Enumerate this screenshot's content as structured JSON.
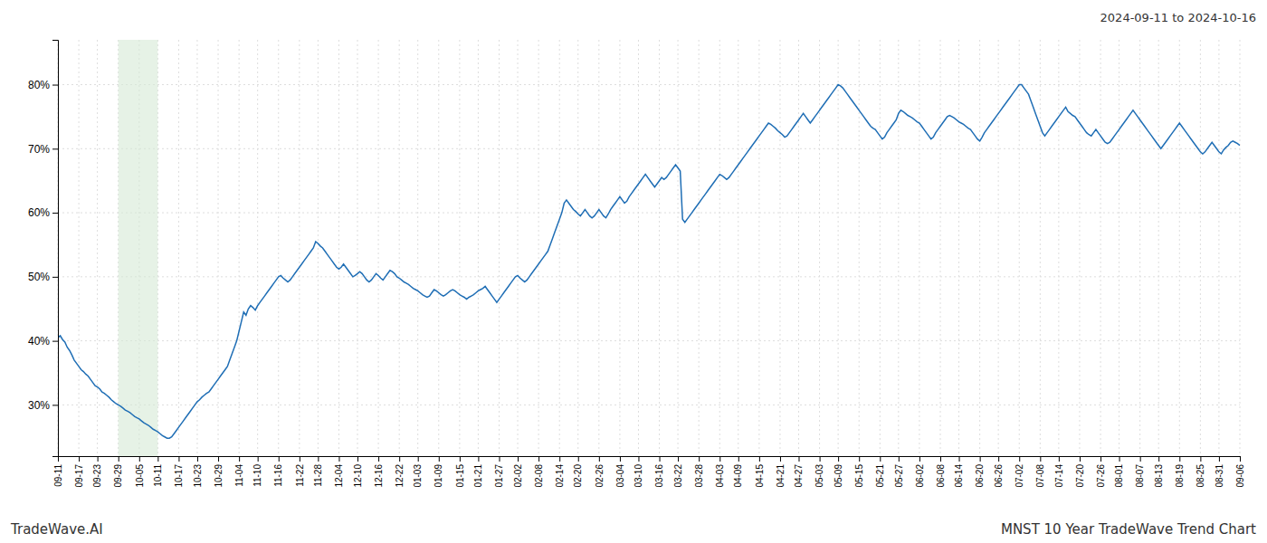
{
  "chart_data": {
    "type": "line",
    "title": "MNST 10 Year TradeWave Trend Chart",
    "subtitle": "2024-09-11 to 2024-10-16",
    "annotations": [
      "TradeWave.AI"
    ],
    "color": "#1f6eb5",
    "grid": true,
    "ylim": [
      22,
      87
    ],
    "yticks": [
      {
        "value": 30,
        "label": "30%"
      },
      {
        "value": 40,
        "label": "40%"
      },
      {
        "value": 50,
        "label": "50%"
      },
      {
        "value": 60,
        "label": "60%"
      },
      {
        "value": 70,
        "label": "70%"
      },
      {
        "value": 80,
        "label": "80%"
      }
    ],
    "shade": {
      "from": "09-29",
      "to": "10-11",
      "color": "#d6ead6"
    },
    "categories": [
      "09-11",
      null,
      null,
      null,
      null,
      null,
      null,
      null,
      null,
      "09-17",
      null,
      null,
      null,
      null,
      null,
      null,
      null,
      "09-23",
      null,
      null,
      null,
      null,
      null,
      null,
      null,
      null,
      "09-29",
      null,
      null,
      null,
      null,
      null,
      null,
      null,
      null,
      "10-05",
      null,
      null,
      null,
      null,
      null,
      null,
      null,
      "10-11",
      null,
      null,
      null,
      null,
      null,
      null,
      null,
      null,
      "10-17",
      null,
      null,
      null,
      null,
      null,
      null,
      null,
      "10-23",
      null,
      null,
      null,
      null,
      null,
      null,
      null,
      null,
      "10-29",
      null,
      null,
      null,
      null,
      null,
      null,
      null,
      null,
      "11-04",
      null,
      null,
      null,
      null,
      null,
      null,
      null,
      "11-10",
      null,
      null,
      null,
      null,
      null,
      null,
      null,
      null,
      "11-16",
      null,
      null,
      null,
      null,
      null,
      null,
      null,
      null,
      "11-22",
      null,
      null,
      null,
      null,
      null,
      null,
      null,
      "11-28",
      null,
      null,
      null,
      null,
      null,
      null,
      null,
      null,
      "12-04",
      null,
      null,
      null,
      null,
      null,
      null,
      null,
      "12-10",
      null,
      null,
      null,
      null,
      null,
      null,
      null,
      null,
      "12-16",
      null,
      null,
      null,
      null,
      null,
      null,
      null,
      null,
      "12-22",
      null,
      null,
      null,
      null,
      null,
      null,
      null,
      "01-03",
      null,
      null,
      null,
      null,
      null,
      null,
      null,
      null,
      "01-09",
      null,
      null,
      null,
      null,
      null,
      null,
      null,
      null,
      "01-15",
      null,
      null,
      null,
      null,
      null,
      null,
      null,
      "01-21",
      null,
      null,
      null,
      null,
      null,
      null,
      null,
      null,
      "01-27",
      null,
      null,
      null,
      null,
      null,
      null,
      null,
      "02-02",
      null,
      null,
      null,
      null,
      null,
      null,
      null,
      null,
      "02-08",
      null,
      null,
      null,
      null,
      null,
      null,
      null,
      null,
      "02-14",
      null,
      null,
      null,
      null,
      null,
      null,
      null,
      "02-20",
      null,
      null,
      null,
      null,
      null,
      null,
      null,
      null,
      "02-26",
      null,
      null,
      null,
      null,
      null,
      null,
      null,
      null,
      "03-04",
      null,
      null,
      null,
      null,
      null,
      null,
      null,
      "03-10",
      null,
      null,
      null,
      null,
      null,
      null,
      null,
      null,
      "03-16",
      null,
      null,
      null,
      null,
      null,
      null,
      null,
      "03-22",
      null,
      null,
      null,
      null,
      null,
      null,
      null,
      null,
      "03-28",
      null,
      null,
      null,
      null,
      null,
      null,
      null,
      null,
      "04-03",
      null,
      null,
      null,
      null,
      null,
      null,
      null,
      "04-09",
      null,
      null,
      null,
      null,
      null,
      null,
      null,
      null,
      "04-15",
      null,
      null,
      null,
      null,
      null,
      null,
      null,
      null,
      "04-21",
      null,
      null,
      null,
      null,
      null,
      null,
      null,
      "04-27",
      null,
      null,
      null,
      null,
      null,
      null,
      null,
      null,
      "05-03",
      null,
      null,
      null,
      null,
      null,
      null,
      null,
      "05-09",
      null,
      null,
      null,
      null,
      null,
      null,
      null,
      null,
      "05-15",
      null,
      null,
      null,
      null,
      null,
      null,
      null,
      null,
      "05-21",
      null,
      null,
      null,
      null,
      null,
      null,
      null,
      "05-27",
      null,
      null,
      null,
      null,
      null,
      null,
      null,
      null,
      "06-02",
      null,
      null,
      null,
      null,
      null,
      null,
      null,
      null,
      "06-08",
      null,
      null,
      null,
      null,
      null,
      null,
      null,
      "06-14",
      null,
      null,
      null,
      null,
      null,
      null,
      null,
      null,
      "06-20",
      null,
      null,
      null,
      null,
      null,
      null,
      null,
      "06-26",
      null,
      null,
      null,
      null,
      null,
      null,
      null,
      null,
      "07-02",
      null,
      null,
      null,
      null,
      null,
      null,
      null,
      null,
      "07-08",
      null,
      null,
      null,
      null,
      null,
      null,
      null,
      "07-14",
      null,
      null,
      null,
      null,
      null,
      null,
      null,
      null,
      "07-20",
      null,
      null,
      null,
      null,
      null,
      null,
      null,
      null,
      "07-26",
      null,
      null,
      null,
      null,
      null,
      null,
      null,
      "08-01",
      null,
      null,
      null,
      null,
      null,
      null,
      null,
      null,
      "08-07",
      null,
      null,
      null,
      null,
      null,
      null,
      null,
      "08-13",
      null,
      null,
      null,
      null,
      null,
      null,
      null,
      null,
      "08-19",
      null,
      null,
      null,
      null,
      null,
      null,
      null,
      null,
      "08-25",
      null,
      null,
      null,
      null,
      null,
      null,
      null,
      "08-31",
      null,
      null,
      null,
      null,
      null,
      null,
      null,
      null,
      "09-06"
    ],
    "values": [
      40.5,
      40.8,
      40.2,
      39.8,
      39.0,
      38.5,
      37.8,
      37.0,
      36.5,
      36.0,
      35.5,
      35.2,
      34.8,
      34.5,
      34.0,
      33.5,
      33.0,
      32.8,
      32.5,
      32.0,
      31.8,
      31.5,
      31.2,
      30.8,
      30.5,
      30.2,
      30.0,
      29.8,
      29.5,
      29.2,
      29.0,
      28.8,
      28.5,
      28.2,
      28.0,
      27.8,
      27.5,
      27.2,
      27.0,
      26.8,
      26.5,
      26.2,
      26.0,
      25.8,
      25.5,
      25.2,
      25.0,
      24.8,
      24.8,
      25.0,
      25.5,
      26.0,
      26.5,
      27.0,
      27.5,
      28.0,
      28.5,
      29.0,
      29.5,
      30.0,
      30.5,
      30.8,
      31.2,
      31.5,
      31.8,
      32.0,
      32.5,
      33.0,
      33.5,
      34.0,
      34.5,
      35.0,
      35.5,
      36.0,
      37.0,
      38.0,
      39.0,
      40.0,
      41.5,
      43.0,
      44.5,
      44.0,
      45.0,
      45.5,
      45.2,
      44.8,
      45.5,
      46.0,
      46.5,
      47.0,
      47.5,
      48.0,
      48.5,
      49.0,
      49.5,
      50.0,
      50.2,
      49.8,
      49.5,
      49.2,
      49.5,
      50.0,
      50.5,
      51.0,
      51.5,
      52.0,
      52.5,
      53.0,
      53.5,
      54.0,
      54.5,
      55.5,
      55.2,
      54.8,
      54.5,
      54.0,
      53.5,
      53.0,
      52.5,
      52.0,
      51.5,
      51.2,
      51.5,
      52.0,
      51.5,
      51.0,
      50.5,
      50.0,
      50.2,
      50.5,
      50.8,
      50.5,
      50.0,
      49.5,
      49.2,
      49.5,
      50.0,
      50.5,
      50.2,
      49.8,
      49.5,
      50.0,
      50.5,
      51.0,
      50.8,
      50.5,
      50.0,
      49.8,
      49.5,
      49.2,
      49.0,
      48.8,
      48.5,
      48.2,
      48.0,
      47.8,
      47.5,
      47.2,
      47.0,
      46.8,
      47.0,
      47.5,
      48.0,
      47.8,
      47.5,
      47.2,
      47.0,
      47.2,
      47.5,
      47.8,
      48.0,
      47.8,
      47.5,
      47.2,
      47.0,
      46.8,
      46.5,
      46.8,
      47.0,
      47.2,
      47.5,
      47.8,
      48.0,
      48.2,
      48.5,
      48.0,
      47.5,
      47.0,
      46.5,
      46.0,
      46.5,
      47.0,
      47.5,
      48.0,
      48.5,
      49.0,
      49.5,
      50.0,
      50.2,
      49.8,
      49.5,
      49.2,
      49.5,
      50.0,
      50.5,
      51.0,
      51.5,
      52.0,
      52.5,
      53.0,
      53.5,
      54.0,
      55.0,
      56.0,
      57.0,
      58.0,
      59.0,
      60.0,
      61.5,
      62.0,
      61.5,
      61.0,
      60.5,
      60.2,
      59.8,
      59.5,
      60.0,
      60.5,
      60.0,
      59.5,
      59.2,
      59.5,
      60.0,
      60.5,
      60.0,
      59.5,
      59.2,
      59.8,
      60.5,
      61.0,
      61.5,
      62.0,
      62.5,
      62.0,
      61.5,
      61.8,
      62.5,
      63.0,
      63.5,
      64.0,
      64.5,
      65.0,
      65.5,
      66.0,
      65.5,
      65.0,
      64.5,
      64.0,
      64.5,
      65.0,
      65.5,
      65.2,
      65.5,
      66.0,
      66.5,
      67.0,
      67.5,
      67.0,
      66.5,
      59.0,
      58.5,
      59.0,
      59.5,
      60.0,
      60.5,
      61.0,
      61.5,
      62.0,
      62.5,
      63.0,
      63.5,
      64.0,
      64.5,
      65.0,
      65.5,
      66.0,
      65.8,
      65.5,
      65.2,
      65.5,
      66.0,
      66.5,
      67.0,
      67.5,
      68.0,
      68.5,
      69.0,
      69.5,
      70.0,
      70.5,
      71.0,
      71.5,
      72.0,
      72.5,
      73.0,
      73.5,
      74.0,
      73.8,
      73.5,
      73.2,
      72.8,
      72.5,
      72.2,
      71.8,
      72.0,
      72.5,
      73.0,
      73.5,
      74.0,
      74.5,
      75.0,
      75.5,
      75.0,
      74.5,
      74.0,
      74.5,
      75.0,
      75.5,
      76.0,
      76.5,
      77.0,
      77.5,
      78.0,
      78.5,
      79.0,
      79.5,
      80.0,
      79.8,
      79.5,
      79.0,
      78.5,
      78.0,
      77.5,
      77.0,
      76.5,
      76.0,
      75.5,
      75.0,
      74.5,
      74.0,
      73.5,
      73.2,
      73.0,
      72.5,
      72.0,
      71.5,
      71.8,
      72.5,
      73.0,
      73.5,
      74.0,
      74.5,
      75.5,
      76.0,
      75.8,
      75.5,
      75.2,
      75.0,
      74.8,
      74.5,
      74.2,
      74.0,
      73.5,
      73.0,
      72.5,
      72.0,
      71.5,
      71.8,
      72.5,
      73.0,
      73.5,
      74.0,
      74.5,
      75.0,
      75.2,
      75.0,
      74.8,
      74.5,
      74.2,
      74.0,
      73.8,
      73.5,
      73.2,
      73.0,
      72.5,
      72.0,
      71.5,
      71.2,
      71.8,
      72.5,
      73.0,
      73.5,
      74.0,
      74.5,
      75.0,
      75.5,
      76.0,
      76.5,
      77.0,
      77.5,
      78.0,
      78.5,
      79.0,
      79.5,
      80.0,
      80.0,
      79.5,
      79.0,
      78.5,
      77.5,
      76.5,
      75.5,
      74.5,
      73.5,
      72.5,
      72.0,
      72.5,
      73.0,
      73.5,
      74.0,
      74.5,
      75.0,
      75.5,
      76.0,
      76.5,
      75.8,
      75.5,
      75.2,
      75.0,
      74.5,
      74.0,
      73.5,
      73.0,
      72.5,
      72.2,
      72.0,
      72.5,
      73.0,
      72.5,
      72.0,
      71.5,
      71.0,
      70.8,
      71.0,
      71.5,
      72.0,
      72.5,
      73.0,
      73.5,
      74.0,
      74.5,
      75.0,
      75.5,
      76.0,
      75.5,
      75.0,
      74.5,
      74.0,
      73.5,
      73.0,
      72.5,
      72.0,
      71.5,
      71.0,
      70.5,
      70.0,
      70.5,
      71.0,
      71.5,
      72.0,
      72.5,
      73.0,
      73.5,
      74.0,
      73.5,
      73.0,
      72.5,
      72.0,
      71.5,
      71.0,
      70.5,
      70.0,
      69.5,
      69.2,
      69.5,
      70.0,
      70.5,
      71.0,
      70.5,
      70.0,
      69.5,
      69.2,
      69.8,
      70.2,
      70.5,
      71.0,
      71.2,
      71.0,
      70.8,
      70.5
    ]
  }
}
